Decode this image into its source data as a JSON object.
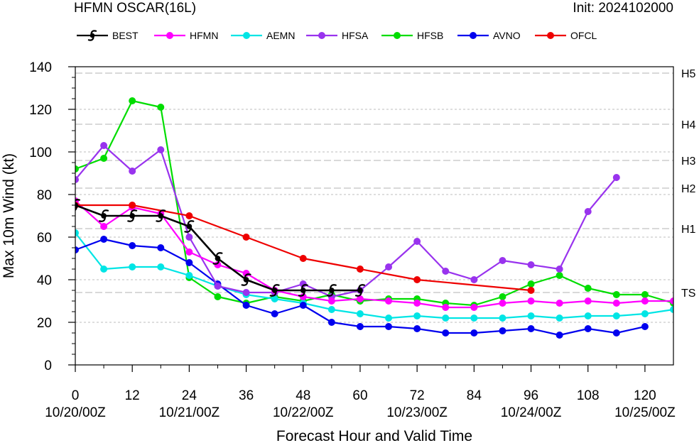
{
  "chart_data": {
    "type": "line",
    "title": "HFMN OSCAR(16L)",
    "init_label": "Init: 2024102000",
    "xlabel": "Forecast Hour and Valid Time",
    "ylabel": "Max 10m Wind (kt)",
    "xlim": [
      0,
      126
    ],
    "ylim": [
      0,
      140
    ],
    "x_ticks": [
      0,
      12,
      24,
      36,
      48,
      60,
      72,
      84,
      96,
      108,
      120
    ],
    "x_tick_labels": [
      "0",
      "12",
      "24",
      "36",
      "48",
      "60",
      "72",
      "84",
      "96",
      "108",
      "120"
    ],
    "x_date_labels": [
      {
        "x": 0,
        "label": "10/20/00Z"
      },
      {
        "x": 24,
        "label": "10/21/00Z"
      },
      {
        "x": 48,
        "label": "10/22/00Z"
      },
      {
        "x": 72,
        "label": "10/23/00Z"
      },
      {
        "x": 96,
        "label": "10/24/00Z"
      },
      {
        "x": 120,
        "label": "10/25/00Z"
      }
    ],
    "y_ticks": [
      0,
      20,
      40,
      60,
      80,
      100,
      120,
      140
    ],
    "intensity_thresholds": [
      {
        "label": "TS",
        "value": 34
      },
      {
        "label": "H1",
        "value": 64
      },
      {
        "label": "H2",
        "value": 83
      },
      {
        "label": "H3",
        "value": 96
      },
      {
        "label": "H4",
        "value": 113
      },
      {
        "label": "H5",
        "value": 137
      }
    ],
    "grid": true,
    "legend_position": "top",
    "series": [
      {
        "name": "BEST",
        "color": "#000000",
        "marker": "hurricane-symbol",
        "x": [
          0,
          6,
          12,
          18,
          24,
          30,
          36,
          42,
          48,
          54,
          60
        ],
        "values": [
          75,
          70,
          70,
          70,
          65,
          50,
          40,
          35,
          35,
          35,
          35
        ]
      },
      {
        "name": "HFMN",
        "color": "#ff00ff",
        "marker": "circle",
        "x": [
          0,
          6,
          12,
          18,
          24,
          30,
          36,
          42,
          48,
          54,
          60,
          66,
          72,
          78,
          84,
          90,
          96,
          102,
          108,
          114,
          120,
          126
        ],
        "values": [
          77,
          65,
          74,
          71,
          53,
          47,
          43,
          35,
          32,
          30,
          31,
          30,
          29,
          27,
          27,
          29,
          30,
          29,
          30,
          29,
          30,
          30
        ]
      },
      {
        "name": "AEMN",
        "color": "#00e5e5",
        "marker": "circle",
        "x": [
          0,
          6,
          12,
          18,
          24,
          30,
          36,
          42,
          48,
          54,
          60,
          66,
          72,
          78,
          84,
          90,
          96,
          102,
          108,
          114,
          120,
          126
        ],
        "values": [
          62,
          45,
          46,
          46,
          42,
          37,
          33,
          31,
          29,
          26,
          24,
          22,
          23,
          22,
          22,
          22,
          23,
          22,
          23,
          23,
          24,
          26
        ]
      },
      {
        "name": "HFSA",
        "color": "#9933ee",
        "marker": "circle",
        "x": [
          0,
          6,
          12,
          18,
          24,
          30,
          36,
          42,
          48,
          54,
          60,
          66,
          72,
          78,
          84,
          90,
          96,
          102,
          108,
          114
        ],
        "values": [
          87,
          103,
          91,
          101,
          60,
          37,
          34,
          34,
          38,
          32,
          35,
          46,
          58,
          44,
          40,
          49,
          47,
          45,
          72,
          88
        ]
      },
      {
        "name": "HFSB",
        "color": "#00dd00",
        "marker": "circle",
        "x": [
          0,
          6,
          12,
          18,
          24,
          30,
          36,
          42,
          48,
          54,
          60,
          66,
          72,
          78,
          84,
          90,
          96,
          102,
          108,
          114,
          120,
          126
        ],
        "values": [
          92,
          97,
          124,
          121,
          41,
          32,
          29,
          32,
          30,
          33,
          30,
          31,
          31,
          29,
          28,
          32,
          38,
          42,
          36,
          33,
          33,
          29
        ]
      },
      {
        "name": "AVNO",
        "color": "#0000ee",
        "marker": "circle",
        "x": [
          0,
          6,
          12,
          18,
          24,
          30,
          36,
          42,
          48,
          54,
          60,
          66,
          72,
          78,
          84,
          90,
          96,
          102,
          108,
          114,
          120
        ],
        "values": [
          54,
          59,
          56,
          55,
          48,
          38,
          28,
          24,
          28,
          20,
          18,
          18,
          17,
          15,
          15,
          16,
          17,
          14,
          17,
          15,
          18
        ]
      },
      {
        "name": "OFCL",
        "color": "#ee0000",
        "marker": "circle",
        "x": [
          0,
          12,
          24,
          36,
          48,
          60,
          72,
          96
        ],
        "values": [
          75,
          75,
          70,
          60,
          50,
          45,
          40,
          35
        ]
      }
    ]
  }
}
